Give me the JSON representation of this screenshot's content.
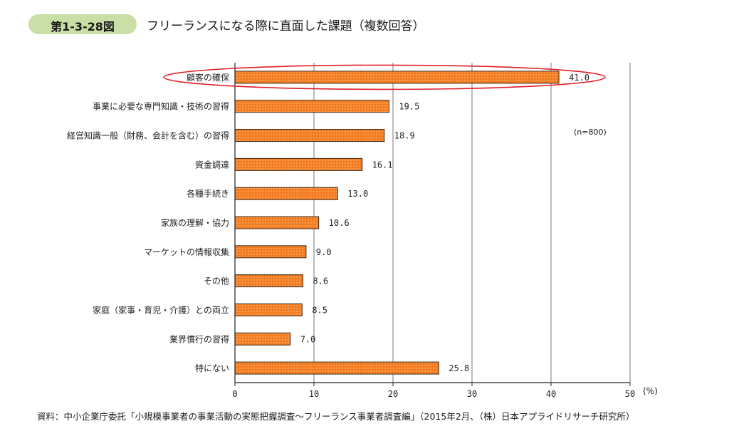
{
  "figure": {
    "number": "第1-3-28図",
    "title": "フリーランスになる際に直面した課題（複数回答）"
  },
  "chart_data": {
    "type": "bar",
    "orientation": "horizontal",
    "categories": [
      "顧客の確保",
      "事業に必要な専門知識・技術の習得",
      "経営知識一般（財務、会計を含む）の習得",
      "資金調達",
      "各種手続き",
      "家族の理解・協力",
      "マーケットの情報収集",
      "その他",
      "家庭（家事・育児・介護）との両立",
      "業界慣行の習得",
      "特にない"
    ],
    "values": [
      41.0,
      19.5,
      18.9,
      16.1,
      13.0,
      10.6,
      9.0,
      8.6,
      8.5,
      7.0,
      25.8
    ],
    "value_labels": [
      "41.0",
      "19.5",
      "18.9",
      "16.1",
      "13.0",
      "10.6",
      "9.0",
      "8.6",
      "8.5",
      "7.0",
      "25.8"
    ],
    "xlim": [
      0,
      50
    ],
    "xticks": [
      "0",
      "10",
      "20",
      "30",
      "40",
      "50"
    ],
    "x_unit": "(%)",
    "sample_note": "(n=800)",
    "highlighted_category": "顧客の確保",
    "grid": "vertical",
    "bar_color": "#f47c20",
    "bar_pattern_color": "#fbd3a6",
    "highlight_color": "#e0202a"
  },
  "source": "資料：中小企業庁委託「小規模事業者の事業活動の実態把握調査～フリーランス事業者調査編」（2015年2月、（株）日本アプライドリサーチ研究所）"
}
